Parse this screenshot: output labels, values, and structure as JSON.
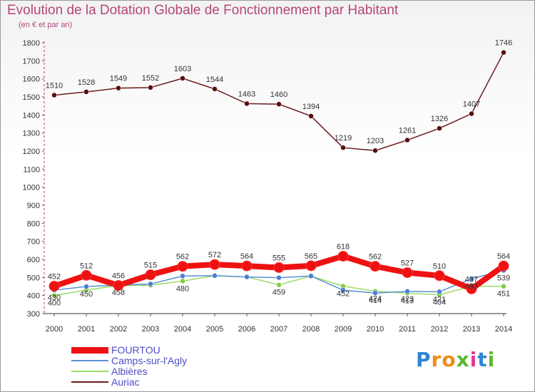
{
  "chart_data": {
    "type": "line",
    "title": "Evolution de la Dotation Globale de Fonctionnement par Habitant",
    "subtitle": "(en € et par an)",
    "x": [
      "2000",
      "2001",
      "2002",
      "2003",
      "2004",
      "2005",
      "2006",
      "2007",
      "2008",
      "2009",
      "2010",
      "2011",
      "2012",
      "2013",
      "2014"
    ],
    "ylim": [
      300,
      1800
    ],
    "yticks": [
      300,
      400,
      500,
      600,
      700,
      800,
      900,
      1000,
      1100,
      1200,
      1300,
      1400,
      1500,
      1600,
      1700,
      1800
    ],
    "grid": false,
    "legend_position": "bottom-left",
    "series": [
      {
        "name": "FOURTOU",
        "color": "#ee1111",
        "values": [
          452,
          512,
          456,
          515,
          562,
          572,
          564,
          555,
          565,
          618,
          562,
          527,
          510,
          437,
          564
        ]
      },
      {
        "name": "Camps-sur-l'Agly",
        "color": "#5b8fd1",
        "values": [
          430,
          450,
          458,
          464,
          508,
          510,
          503,
          499,
          508,
          430,
          414,
          423,
          421,
          493,
          539
        ]
      },
      {
        "name": "Albières",
        "color": "#99dd66",
        "values": [
          400,
          430,
          456,
          457,
          480,
          510,
          503,
          459,
          508,
          452,
          424,
          413,
          404,
          452,
          451
        ]
      },
      {
        "name": "Auriac",
        "color": "#6b1a1a",
        "values": [
          1510,
          1528,
          1549,
          1552,
          1603,
          1544,
          1463,
          1460,
          1394,
          1219,
          1203,
          1261,
          1326,
          1407,
          1746
        ]
      }
    ],
    "data_labels": {
      "FOURTOU": [
        "452",
        "512",
        "456",
        "515",
        "562",
        "572",
        "564",
        "555",
        "565",
        "618",
        "562",
        "527",
        "510",
        "437",
        "564"
      ],
      "Auriac": [
        "1510",
        "1528",
        "1549",
        "1552",
        "1603",
        "1544",
        "1463",
        "1460",
        "1394",
        "1219",
        "1203",
        "1261",
        "1326",
        "1407",
        "1746"
      ],
      "Camps-sur-l'Agly": [
        "430",
        "450",
        "458",
        "",
        "",
        "",
        "",
        "",
        "",
        "",
        "414",
        "423",
        "421",
        "493",
        "539"
      ],
      "Albières": [
        "400",
        "",
        "",
        "",
        "480",
        "",
        "",
        "459",
        "",
        "452",
        "424",
        "413",
        "404",
        "",
        "451"
      ]
    }
  },
  "logo": {
    "letters": [
      "P",
      "r",
      "o",
      "x",
      "i",
      "t",
      "i"
    ],
    "colors": [
      "#2e86d6",
      "#f08c1a",
      "#f08c1a",
      "#5cb82d",
      "#e23b8f",
      "#2e86d6",
      "#5cb82d"
    ]
  }
}
